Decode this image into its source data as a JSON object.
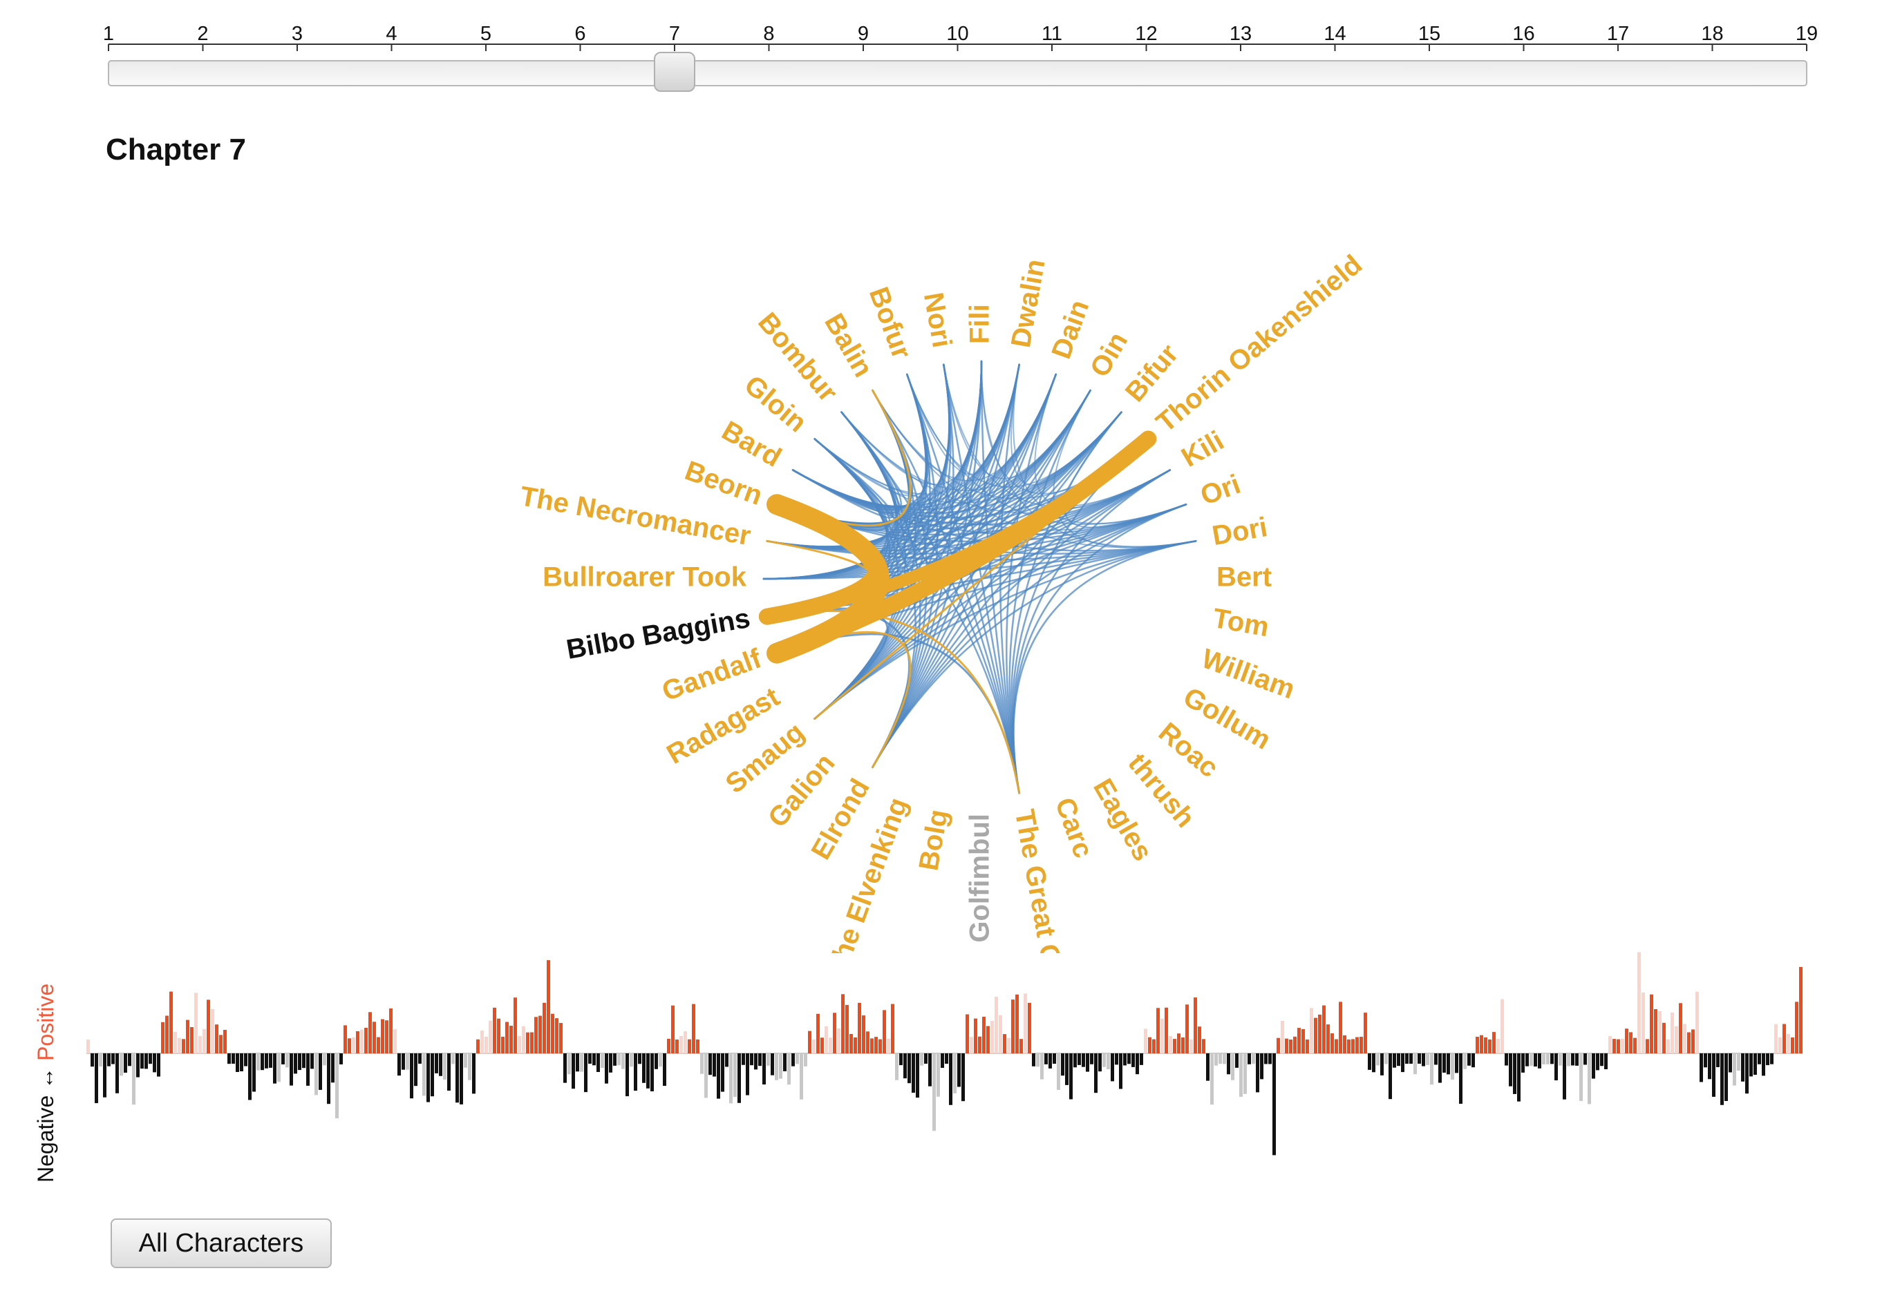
{
  "slider": {
    "ticks": [
      "1",
      "2",
      "3",
      "4",
      "5",
      "6",
      "7",
      "8",
      "9",
      "10",
      "11",
      "12",
      "13",
      "14",
      "15",
      "16",
      "17",
      "18",
      "19"
    ],
    "min": 1,
    "max": 19,
    "value": 7
  },
  "chapter_title": "Chapter 7",
  "colors": {
    "character": "#e9a82a",
    "selected": "#111111",
    "inactive": "#a8a8a8",
    "link": "#4f88c4",
    "positive": "#f04a1c",
    "positive_light": "#fcd3ca",
    "negative": "#111111",
    "negative_light": "#c8c8c8"
  },
  "characters": [
    {
      "name": "The Necromancer",
      "status": "normal"
    },
    {
      "name": "Beorn",
      "status": "normal"
    },
    {
      "name": "Bard",
      "status": "normal"
    },
    {
      "name": "Gloin",
      "status": "normal"
    },
    {
      "name": "Bombur",
      "status": "normal"
    },
    {
      "name": "Balin",
      "status": "normal"
    },
    {
      "name": "Bofur",
      "status": "normal"
    },
    {
      "name": "Nori",
      "status": "normal"
    },
    {
      "name": "Fili",
      "status": "normal"
    },
    {
      "name": "Dwalin",
      "status": "normal"
    },
    {
      "name": "Dain",
      "status": "normal"
    },
    {
      "name": "Oin",
      "status": "normal"
    },
    {
      "name": "Bifur",
      "status": "normal"
    },
    {
      "name": "Thorin Oakenshield",
      "status": "normal"
    },
    {
      "name": "Kili",
      "status": "normal"
    },
    {
      "name": "Ori",
      "status": "normal"
    },
    {
      "name": "Dori",
      "status": "normal"
    },
    {
      "name": "Bert",
      "status": "normal"
    },
    {
      "name": "Tom",
      "status": "normal"
    },
    {
      "name": "William",
      "status": "normal"
    },
    {
      "name": "Gollum",
      "status": "normal"
    },
    {
      "name": "Roac",
      "status": "normal"
    },
    {
      "name": "thrush",
      "status": "normal"
    },
    {
      "name": "Eagles",
      "status": "normal"
    },
    {
      "name": "Carc",
      "status": "normal"
    },
    {
      "name": "The Great Goblin",
      "status": "normal"
    },
    {
      "name": "Golfimbul",
      "status": "inactive"
    },
    {
      "name": "Bolg",
      "status": "normal"
    },
    {
      "name": "The Elvenking",
      "status": "normal"
    },
    {
      "name": "Elrond",
      "status": "normal"
    },
    {
      "name": "Galion",
      "status": "normal"
    },
    {
      "name": "Smaug",
      "status": "normal"
    },
    {
      "name": "Radagast",
      "status": "normal"
    },
    {
      "name": "Gandalf",
      "status": "normal"
    },
    {
      "name": "Bilbo Baggins",
      "status": "selected"
    },
    {
      "name": "Bullroarer Took",
      "status": "normal"
    }
  ],
  "sentiment": {
    "label_negative": "Negative",
    "label_arrow": "↔",
    "label_positive": "Positive"
  },
  "button": {
    "all_characters": "All Characters"
  }
}
